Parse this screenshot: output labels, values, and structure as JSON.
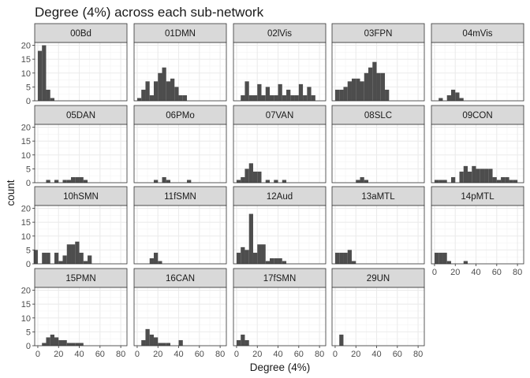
{
  "chart_data": {
    "type": "bar",
    "subtype": "faceted-histogram",
    "title": "Degree (4%) across each sub-network",
    "xlabel": "Degree (4%)",
    "ylabel": "count",
    "xlim": [
      -3,
      86
    ],
    "ylim": [
      0,
      21
    ],
    "x_ticks": [
      0,
      20,
      40,
      60,
      80
    ],
    "y_ticks": [
      0,
      5,
      10,
      15,
      20
    ],
    "bin_width": 4,
    "grid": true,
    "colors": {
      "bar": "#4d4d4d",
      "panel_bg": "#ffffff",
      "strip_bg": "#d9d9d9",
      "grid": "#ebebeb",
      "border": "#333333"
    },
    "series": [
      {
        "name": "00Bd",
        "bins": [
          [
            0,
            18
          ],
          [
            4,
            20
          ],
          [
            8,
            4
          ],
          [
            12,
            1
          ]
        ]
      },
      {
        "name": "01DMN",
        "bins": [
          [
            0,
            1
          ],
          [
            4,
            4
          ],
          [
            8,
            7
          ],
          [
            12,
            2
          ],
          [
            16,
            7
          ],
          [
            20,
            10
          ],
          [
            24,
            12
          ],
          [
            28,
            7
          ],
          [
            32,
            8
          ],
          [
            36,
            5
          ],
          [
            40,
            2
          ],
          [
            44,
            2
          ]
        ]
      },
      {
        "name": "02lVis",
        "bins": [
          [
            4,
            2
          ],
          [
            8,
            7
          ],
          [
            12,
            2
          ],
          [
            16,
            2
          ],
          [
            20,
            6
          ],
          [
            24,
            2
          ],
          [
            28,
            5
          ],
          [
            32,
            2
          ],
          [
            36,
            2
          ],
          [
            40,
            6
          ],
          [
            44,
            2
          ],
          [
            48,
            4
          ],
          [
            52,
            2
          ],
          [
            56,
            2
          ],
          [
            60,
            6
          ],
          [
            64,
            2
          ],
          [
            68,
            5
          ],
          [
            72,
            2
          ]
        ]
      },
      {
        "name": "03FPN",
        "bins": [
          [
            0,
            4
          ],
          [
            4,
            4
          ],
          [
            8,
            5
          ],
          [
            12,
            7
          ],
          [
            16,
            8
          ],
          [
            20,
            8
          ],
          [
            24,
            7
          ],
          [
            28,
            10
          ],
          [
            32,
            12
          ],
          [
            36,
            14
          ],
          [
            40,
            10
          ],
          [
            44,
            10
          ],
          [
            48,
            4
          ]
        ]
      },
      {
        "name": "04mVis",
        "bins": [
          [
            4,
            1
          ],
          [
            12,
            2
          ],
          [
            16,
            4
          ],
          [
            20,
            3
          ],
          [
            24,
            1
          ]
        ]
      },
      {
        "name": "05DAN",
        "bins": [
          [
            8,
            1
          ],
          [
            16,
            1
          ],
          [
            24,
            1
          ],
          [
            28,
            1
          ],
          [
            32,
            2
          ],
          [
            36,
            2
          ],
          [
            40,
            2
          ],
          [
            44,
            1
          ]
        ]
      },
      {
        "name": "06PMo",
        "bins": [
          [
            16,
            1
          ],
          [
            24,
            2
          ],
          [
            28,
            1
          ],
          [
            48,
            1
          ]
        ]
      },
      {
        "name": "07VAN",
        "bins": [
          [
            0,
            1
          ],
          [
            4,
            2
          ],
          [
            8,
            5
          ],
          [
            12,
            7
          ],
          [
            16,
            4
          ],
          [
            20,
            4
          ],
          [
            28,
            1
          ],
          [
            36,
            1
          ],
          [
            44,
            1
          ]
        ]
      },
      {
        "name": "08SLC",
        "bins": [
          [
            20,
            1
          ],
          [
            24,
            2
          ],
          [
            28,
            1
          ]
        ]
      },
      {
        "name": "09CON",
        "bins": [
          [
            0,
            1
          ],
          [
            4,
            1
          ],
          [
            8,
            1
          ],
          [
            16,
            2
          ],
          [
            24,
            4
          ],
          [
            28,
            6
          ],
          [
            32,
            4
          ],
          [
            36,
            6
          ],
          [
            40,
            5
          ],
          [
            44,
            5
          ],
          [
            48,
            5
          ],
          [
            52,
            5
          ],
          [
            56,
            2
          ],
          [
            60,
            1
          ],
          [
            64,
            2
          ],
          [
            68,
            2
          ],
          [
            72,
            1
          ],
          [
            76,
            1
          ]
        ]
      },
      {
        "name": "10hSMN",
        "bins": [
          [
            -4,
            5
          ],
          [
            4,
            4
          ],
          [
            8,
            4
          ],
          [
            16,
            4
          ],
          [
            20,
            1
          ],
          [
            24,
            3
          ],
          [
            28,
            7
          ],
          [
            32,
            7
          ],
          [
            36,
            8
          ],
          [
            40,
            4
          ],
          [
            44,
            1
          ],
          [
            48,
            3
          ]
        ]
      },
      {
        "name": "11fSMN",
        "bins": [
          [
            12,
            2
          ],
          [
            16,
            4
          ],
          [
            20,
            1
          ]
        ]
      },
      {
        "name": "12Aud",
        "bins": [
          [
            0,
            4
          ],
          [
            4,
            6
          ],
          [
            8,
            5
          ],
          [
            12,
            18
          ],
          [
            16,
            4
          ],
          [
            20,
            7
          ],
          [
            24,
            7
          ],
          [
            28,
            1
          ],
          [
            32,
            2
          ],
          [
            36,
            2
          ],
          [
            40,
            2
          ],
          [
            44,
            1
          ]
        ]
      },
      {
        "name": "13aMTL",
        "bins": [
          [
            0,
            4
          ],
          [
            4,
            4
          ],
          [
            8,
            4
          ],
          [
            12,
            5
          ],
          [
            16,
            1
          ]
        ]
      },
      {
        "name": "14pMTL",
        "bins": [
          [
            0,
            4
          ],
          [
            4,
            4
          ],
          [
            8,
            4
          ],
          [
            12,
            1
          ],
          [
            28,
            1
          ]
        ]
      },
      {
        "name": "15PMN",
        "bins": [
          [
            4,
            1
          ],
          [
            8,
            3
          ],
          [
            12,
            4
          ],
          [
            16,
            3
          ],
          [
            20,
            2
          ],
          [
            24,
            2
          ],
          [
            28,
            1
          ],
          [
            32,
            1
          ],
          [
            36,
            1
          ],
          [
            40,
            1
          ]
        ]
      },
      {
        "name": "16CAN",
        "bins": [
          [
            4,
            2
          ],
          [
            8,
            6
          ],
          [
            12,
            4
          ],
          [
            16,
            3
          ],
          [
            20,
            1
          ],
          [
            24,
            1
          ],
          [
            28,
            1
          ],
          [
            40,
            2
          ]
        ]
      },
      {
        "name": "17fSMN",
        "bins": [
          [
            0,
            2
          ],
          [
            4,
            4
          ],
          [
            8,
            2
          ]
        ]
      },
      {
        "name": "29UN",
        "bins": [
          [
            4,
            4
          ]
        ]
      }
    ]
  }
}
